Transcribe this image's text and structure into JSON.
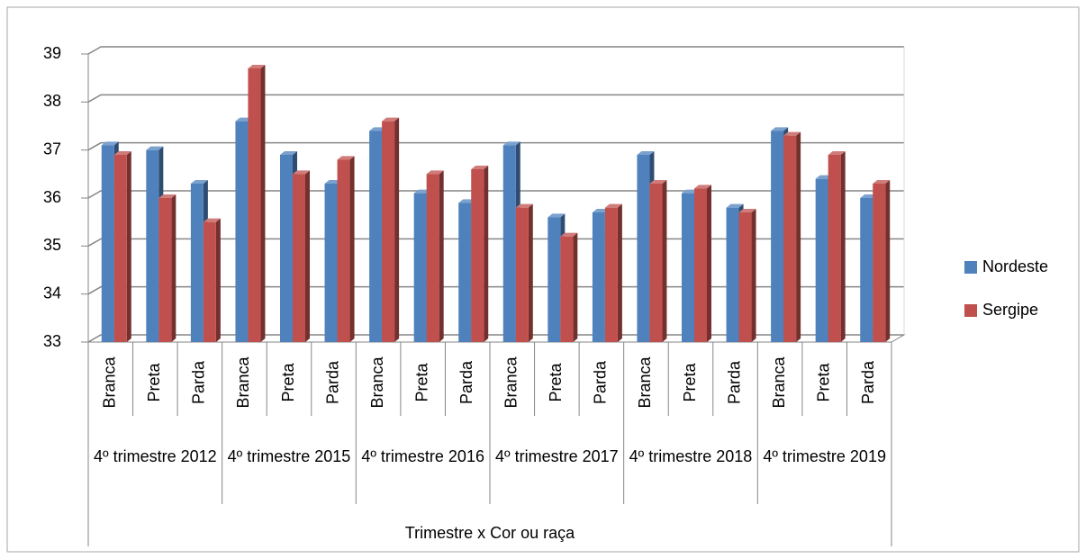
{
  "chart_data": {
    "type": "bar3d",
    "x_label": "Trimestre x Cor ou raça",
    "categories": [
      "Branca",
      "Preta",
      "Parda",
      "Branca",
      "Preta",
      "Parda",
      "Branca",
      "Preta",
      "Parda",
      "Branca",
      "Preta",
      "Parda",
      "Branca",
      "Preta",
      "Parda",
      "Branca",
      "Preta",
      "Parda"
    ],
    "groups": [
      "4º trimestre 2012",
      "4º trimestre 2015",
      "4º trimestre 2016",
      "4º trimestre 2017",
      "4º trimestre 2018",
      "4º trimestre 2019"
    ],
    "series": [
      {
        "name": "Nordeste",
        "color": "#4f81bd",
        "values": [
          37.1,
          37.0,
          36.3,
          37.6,
          36.9,
          36.3,
          37.4,
          36.1,
          35.9,
          37.1,
          35.6,
          35.7,
          36.9,
          36.1,
          35.8,
          37.4,
          36.4,
          36.0
        ]
      },
      {
        "name": "Sergipe",
        "color": "#c0504d",
        "values": [
          36.9,
          36.0,
          35.5,
          38.7,
          36.5,
          36.8,
          37.6,
          36.5,
          36.6,
          35.8,
          35.2,
          35.8,
          36.3,
          36.2,
          35.7,
          37.3,
          36.9,
          36.3
        ]
      }
    ],
    "ylim": [
      33,
      39
    ],
    "yticks": [
      33,
      34,
      35,
      36,
      37,
      38,
      39
    ],
    "grid": true,
    "legend": "right"
  }
}
